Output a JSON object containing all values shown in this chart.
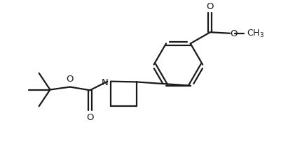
{
  "background": "#ffffff",
  "line_color": "#1a1a1a",
  "line_width": 1.6,
  "figure_size": [
    4.02,
    2.26
  ],
  "dpi": 100,
  "xlim": [
    0,
    10
  ],
  "ylim": [
    0,
    5.62
  ]
}
